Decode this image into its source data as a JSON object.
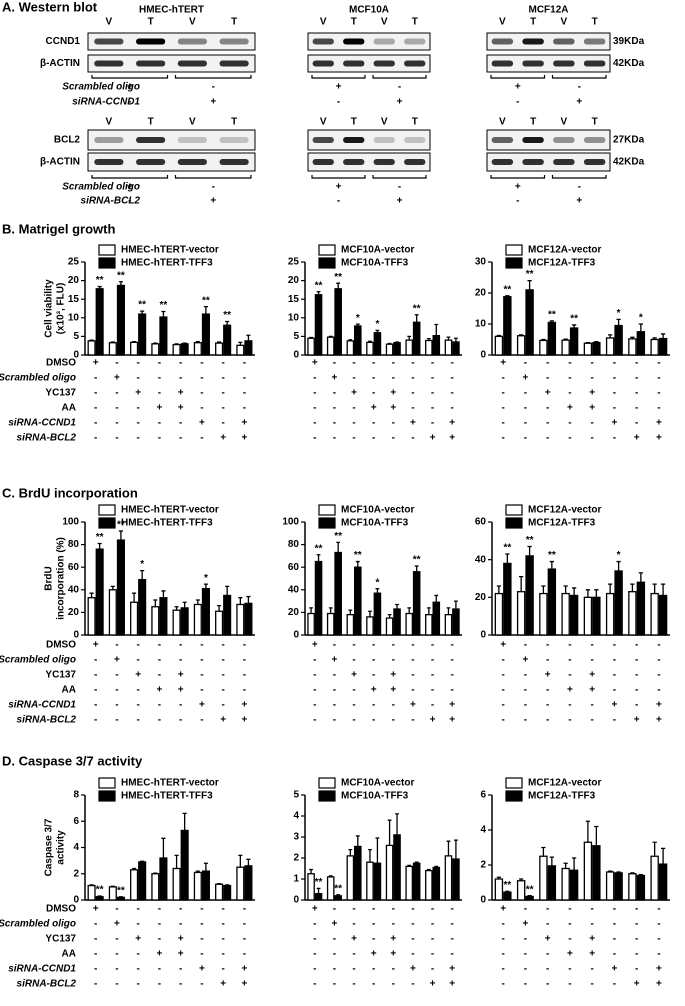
{
  "western_blot": {
    "title": "A. Western blot",
    "cell_lines": [
      "HMEC-hTERT",
      "MCF10A",
      "MCF12A"
    ],
    "lanes": [
      "V",
      "T",
      "V",
      "T"
    ],
    "blocks": [
      {
        "target": "CCND1",
        "loading": "β-ACTIN",
        "target_size": "39KDa",
        "loading_size": "42KDa",
        "treatments": [
          {
            "name": "Scrambled oligo",
            "signs": [
              "+",
              "-"
            ]
          },
          {
            "name": "siRNA-CCND1",
            "signs": [
              "-",
              "+"
            ]
          }
        ]
      },
      {
        "target": "BCL2",
        "loading": "β-ACTIN",
        "target_size": "27KDa",
        "loading_size": "42KDa",
        "treatments": [
          {
            "name": "Scrambled oligo",
            "signs": [
              "+",
              "-"
            ]
          },
          {
            "name": "siRNA-BCL2",
            "signs": [
              "-",
              "+"
            ]
          }
        ]
      }
    ]
  },
  "panel_titles": [
    "B. Matrigel growth",
    "C. BrdU incorporation",
    "D. Caspase 3/7 activity"
  ],
  "treatments": {
    "rows": [
      "DMSO",
      "Scrambled oligo",
      "YC137",
      "AA",
      "siRNA-CCND1",
      "siRNA-BCL2"
    ],
    "signs": [
      [
        "+",
        "-",
        "-",
        "-",
        "-",
        "-",
        "-",
        "-"
      ],
      [
        "-",
        "+",
        "-",
        "-",
        "-",
        "-",
        "-",
        "-"
      ],
      [
        "-",
        "-",
        "+",
        "-",
        "+",
        "-",
        "-",
        "-"
      ],
      [
        "-",
        "-",
        "-",
        "+",
        "+",
        "-",
        "-",
        "-"
      ],
      [
        "-",
        "-",
        "-",
        "-",
        "-",
        "+",
        "-",
        "+"
      ],
      [
        "-",
        "-",
        "-",
        "-",
        "-",
        "-",
        "+",
        "+"
      ]
    ]
  },
  "chart_data": [
    {
      "type": "bar",
      "ylabel": [
        "Cell viability",
        "(x10³, FLU)"
      ],
      "ylim": [
        0,
        25
      ],
      "yticks": [
        0,
        5,
        10,
        15,
        20,
        25
      ],
      "series": [
        {
          "name": "HMEC-hTERT-vector",
          "color": "#ffffff",
          "values": [
            3.8,
            3.3,
            3.4,
            3.0,
            2.8,
            3.3,
            3.2,
            2.6
          ],
          "errors": [
            0.2,
            0.2,
            0.2,
            0.2,
            0.2,
            0.3,
            0.3,
            0.8
          ]
        },
        {
          "name": "HMEC-hTERT-TFF3",
          "color": "#000000",
          "values": [
            17.8,
            18.7,
            11.0,
            10.2,
            3.0,
            11.0,
            8.0,
            3.8
          ],
          "errors": [
            0.6,
            1.0,
            0.8,
            1.5,
            0.2,
            2.0,
            1.0,
            1.5
          ],
          "significance": [
            "**",
            "**",
            "**",
            "**",
            null,
            "**",
            "**",
            null
          ]
        }
      ]
    },
    {
      "type": "bar",
      "ylim": [
        0,
        25
      ],
      "yticks": [
        0,
        5,
        10,
        15,
        20,
        25
      ],
      "series": [
        {
          "name": "MCF10A-vector",
          "color": "#ffffff",
          "values": [
            4.5,
            4.8,
            3.8,
            3.4,
            2.9,
            4.0,
            3.9,
            4.0
          ],
          "errors": [
            0.2,
            0.2,
            0.3,
            0.3,
            0.2,
            1.0,
            0.5,
            0.8
          ]
        },
        {
          "name": "MCF10A-TFF3",
          "color": "#000000",
          "values": [
            16.2,
            17.8,
            7.8,
            6.0,
            3.3,
            8.8,
            5.2,
            3.5
          ],
          "errors": [
            0.8,
            1.5,
            0.5,
            0.6,
            0.2,
            2.0,
            3.0,
            1.0
          ],
          "significance": [
            "**",
            "**",
            "*",
            "*",
            null,
            "**",
            null,
            null
          ]
        }
      ]
    },
    {
      "type": "bar",
      "ylim": [
        0,
        30
      ],
      "yticks": [
        0,
        10,
        20,
        30
      ],
      "series": [
        {
          "name": "MCF12A-vector",
          "color": "#ffffff",
          "values": [
            6.0,
            6.2,
            4.7,
            4.8,
            3.8,
            5.5,
            5.2,
            5.0
          ],
          "errors": [
            0.3,
            0.3,
            0.3,
            0.3,
            0.2,
            1.0,
            0.5,
            0.5
          ]
        },
        {
          "name": "MCF12A-TFF3",
          "color": "#000000",
          "values": [
            18.8,
            21.0,
            10.5,
            8.7,
            4.0,
            9.5,
            7.5,
            5.3
          ],
          "errors": [
            0.3,
            3.0,
            0.5,
            1.0,
            0.3,
            2.0,
            2.5,
            1.5
          ],
          "significance": [
            "**",
            "**",
            "**",
            "**",
            null,
            "*",
            "*",
            null
          ]
        }
      ]
    },
    {
      "type": "bar",
      "ylabel": [
        "BrdU",
        "incorporation (%)"
      ],
      "ylim": [
        0,
        100
      ],
      "yticks": [
        0,
        20,
        40,
        60,
        80,
        100
      ],
      "series": [
        {
          "name": "HMEC-hTERT-vector",
          "color": "#ffffff",
          "values": [
            33,
            40,
            29,
            25,
            22,
            27,
            21,
            27
          ],
          "errors": [
            4,
            3,
            8,
            6,
            3,
            4,
            5,
            6
          ]
        },
        {
          "name": "HMEC-hTERT-TFF3",
          "color": "#000000",
          "values": [
            76,
            84,
            49,
            33,
            24,
            41,
            35,
            28
          ],
          "errors": [
            5,
            8,
            8,
            6,
            5,
            4,
            8,
            6
          ],
          "significance": [
            "**",
            "**",
            "*",
            null,
            null,
            "*",
            null,
            null
          ]
        }
      ]
    },
    {
      "type": "bar",
      "ylim": [
        0,
        100
      ],
      "yticks": [
        0,
        20,
        40,
        60,
        80,
        100
      ],
      "series": [
        {
          "name": "MCF10A-vector",
          "color": "#ffffff",
          "values": [
            19,
            19,
            18,
            16,
            15,
            19,
            18,
            18
          ],
          "errors": [
            5,
            5,
            4,
            5,
            3,
            5,
            6,
            6
          ]
        },
        {
          "name": "MCF10A-TFF3",
          "color": "#000000",
          "values": [
            65,
            73,
            60,
            37,
            23,
            56,
            29,
            23
          ],
          "errors": [
            6,
            9,
            5,
            4,
            4,
            5,
            6,
            7
          ],
          "significance": [
            "**",
            "**",
            "**",
            "*",
            null,
            "**",
            null,
            null
          ]
        }
      ]
    },
    {
      "type": "bar",
      "ylim": [
        0,
        60
      ],
      "yticks": [
        0,
        20,
        40,
        60
      ],
      "series": [
        {
          "name": "MCF12A-vector",
          "color": "#ffffff",
          "values": [
            22,
            23,
            22,
            22,
            20,
            22,
            23,
            22
          ],
          "errors": [
            4,
            8,
            4,
            4,
            4,
            5,
            4,
            5
          ]
        },
        {
          "name": "MCF12A-TFF3",
          "color": "#000000",
          "values": [
            38,
            42,
            35,
            21,
            20,
            34,
            28,
            21
          ],
          "errors": [
            5,
            5,
            4,
            4,
            4,
            5,
            5,
            6
          ],
          "significance": [
            "**",
            "**",
            "**",
            null,
            null,
            "*",
            null,
            null
          ]
        }
      ]
    },
    {
      "type": "bar",
      "ylabel": [
        "Caspase 3/7",
        "activity"
      ],
      "ylim": [
        0,
        8
      ],
      "yticks": [
        0,
        2,
        4,
        6,
        8
      ],
      "series": [
        {
          "name": "HMEC-hTERT-vector",
          "color": "#ffffff",
          "values": [
            1.1,
            1.0,
            2.3,
            2.0,
            2.4,
            2.1,
            1.2,
            2.5
          ],
          "errors": [
            0.05,
            0.05,
            0.1,
            0.05,
            1.0,
            0.1,
            0.05,
            0.9
          ]
        },
        {
          "name": "HMEC-hTERT-TFF3",
          "color": "#000000",
          "values": [
            0.25,
            0.2,
            2.9,
            3.2,
            5.3,
            2.2,
            1.1,
            2.6
          ],
          "errors": [
            0.05,
            0.05,
            0.05,
            1.5,
            1.3,
            0.6,
            0.05,
            0.5
          ],
          "significance": [
            "**",
            "**",
            null,
            null,
            null,
            null,
            null,
            null
          ]
        }
      ]
    },
    {
      "type": "bar",
      "ylim": [
        0,
        5
      ],
      "yticks": [
        0,
        1,
        2,
        3,
        4,
        5
      ],
      "series": [
        {
          "name": "MCF10A-vector",
          "color": "#ffffff",
          "values": [
            1.25,
            1.1,
            2.1,
            1.8,
            2.6,
            1.6,
            1.4,
            2.1
          ],
          "errors": [
            0.2,
            0.05,
            0.3,
            0.6,
            1.2,
            0.05,
            0.05,
            0.7
          ]
        },
        {
          "name": "MCF10A-TFF3",
          "color": "#000000",
          "values": [
            0.3,
            0.2,
            2.55,
            1.75,
            3.1,
            1.75,
            1.55,
            1.95
          ],
          "errors": [
            0.25,
            0.05,
            0.5,
            1.2,
            1.0,
            0.05,
            0.05,
            0.9
          ],
          "significance": [
            "**",
            "**",
            null,
            null,
            null,
            null,
            null,
            null
          ]
        }
      ]
    },
    {
      "type": "bar",
      "ylim": [
        0,
        6
      ],
      "yticks": [
        0,
        2,
        4,
        6
      ],
      "series": [
        {
          "name": "MCF12A-vector",
          "color": "#ffffff",
          "values": [
            1.2,
            1.1,
            2.5,
            1.8,
            3.3,
            1.6,
            1.5,
            2.5
          ],
          "errors": [
            0.1,
            0.1,
            0.5,
            0.3,
            1.2,
            0.05,
            0.05,
            0.8
          ]
        },
        {
          "name": "MCF12A-TFF3",
          "color": "#000000",
          "values": [
            0.45,
            0.2,
            1.95,
            1.7,
            3.1,
            1.55,
            1.4,
            2.05
          ],
          "errors": [
            0.05,
            0.05,
            0.5,
            0.7,
            1.1,
            0.05,
            0.05,
            0.9
          ],
          "significance": [
            "**",
            "**",
            null,
            null,
            null,
            null,
            null,
            null
          ]
        }
      ]
    }
  ]
}
